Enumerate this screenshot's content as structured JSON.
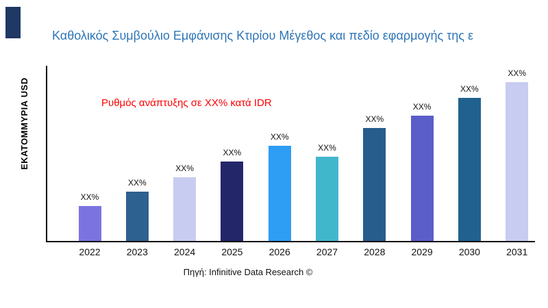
{
  "header": {
    "title": "Καθολικός Συμβούλιο Εμφάνισης Κτιρίου Μέγεθος και πεδίο εφαρμογής της ε"
  },
  "annotation": {
    "growth_text": "Ρυθμός ανάπτυξης σε XX% κατά IDR",
    "color": "#ff0000"
  },
  "source": {
    "text": "Πηγή: Infinitive Data Research ©"
  },
  "colors": {
    "title": "#2e75b6",
    "axis": "#000000",
    "corner_accent": "#1f3864"
  },
  "chart_data": {
    "type": "bar",
    "title": "Καθολικός Συμβούλιο Εμφάνισης Κτιρίου Μέγεθος και πεδίο εφαρμογής της ε",
    "ylabel": "ΕΚΑΤΟΜΜΥΡΙΑ USD",
    "xlabel": "",
    "categories": [
      "2022",
      "2023",
      "2024",
      "2025",
      "2026",
      "2027",
      "2028",
      "2029",
      "2030",
      "2031"
    ],
    "values": [
      22,
      31,
      40,
      50,
      60,
      53,
      71,
      79,
      90,
      100
    ],
    "bar_labels": [
      "XX%",
      "XX%",
      "XX%",
      "XX%",
      "XX%",
      "XX%",
      "XX%",
      "XX%",
      "XX%",
      "XX%"
    ],
    "bar_colors": [
      "#7b74e0",
      "#2d618f",
      "#c8ccf0",
      "#24266a",
      "#2e9df4",
      "#41b7cc",
      "#275d8c",
      "#5b5ec9",
      "#21618f",
      "#c8ccf0"
    ],
    "ylim": [
      0,
      110
    ],
    "grid": false,
    "legend": "none",
    "annotation": "Ρυθμός ανάπτυξης σε XX% κατά IDR",
    "source": "Πηγή: Infinitive Data Research ©"
  }
}
